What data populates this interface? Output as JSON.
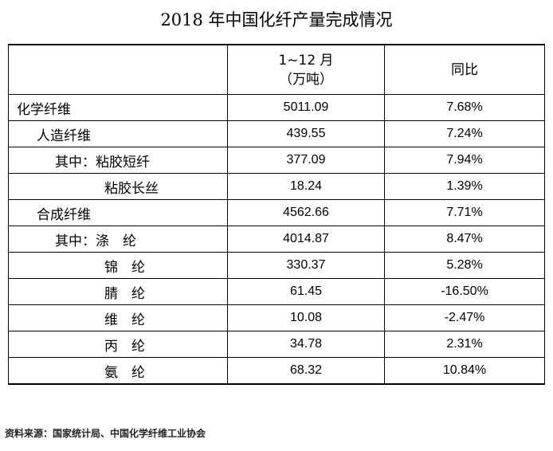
{
  "title": "2018 年中国化纤产量完成情况",
  "header": {
    "col1_line1": "1~12 月",
    "col1_line2": "（万吨）",
    "col2": "同比"
  },
  "rows": [
    {
      "label": "化学纤维",
      "output": "5011.09",
      "yoy": "7.68%"
    },
    {
      "label": "人造纤维",
      "output": "439.55",
      "yoy": "7.24%"
    },
    {
      "label": "其中：粘胶短纤",
      "output": "377.09",
      "yoy": "7.94%"
    },
    {
      "label": "粘胶长丝",
      "output": "18.24",
      "yoy": "1.39%"
    },
    {
      "label": "合成纤维",
      "output": "4562.66",
      "yoy": "7.71%"
    },
    {
      "label": "其中：涤　纶",
      "output": "4014.87",
      "yoy": "8.47%"
    },
    {
      "label": "锦　纶",
      "output": "330.37",
      "yoy": "5.28%"
    },
    {
      "label": "腈　纶",
      "output": "61.45",
      "yoy": "-16.50%"
    },
    {
      "label": "维　纶",
      "output": "10.08",
      "yoy": "-2.47%"
    },
    {
      "label": "丙　纶",
      "output": "34.78",
      "yoy": "2.31%"
    },
    {
      "label": "氨　纶",
      "output": "68.32",
      "yoy": "10.84%"
    }
  ],
  "footnote": "资料来源：国家统计局、中国化学纤维工业协会"
}
